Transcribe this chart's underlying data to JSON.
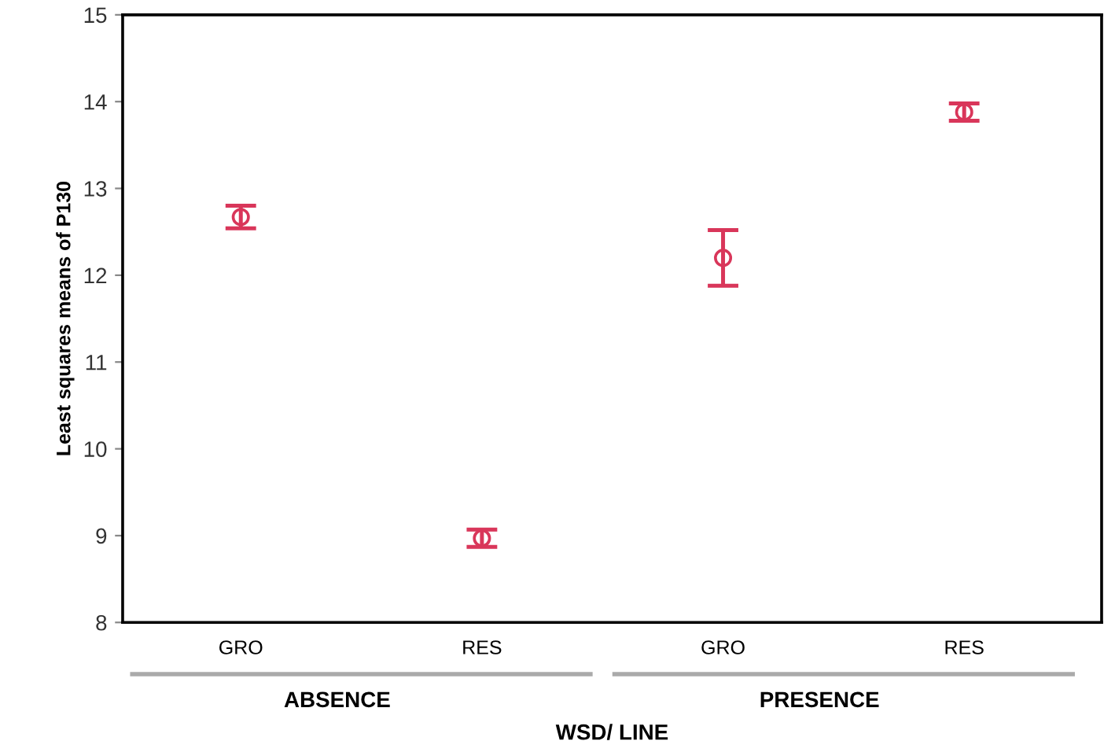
{
  "chart_data": {
    "type": "scatter",
    "ylabel": "Least squares means of P130",
    "xlabel": "WSD/ LINE",
    "categories": [
      "GRO",
      "RES",
      "GRO",
      "RES"
    ],
    "series": [
      {
        "color": "#d9365a",
        "values": [
          12.67,
          8.97,
          12.2,
          13.88
        ],
        "errors": [
          0.13,
          0.1,
          [
            11.88,
            12.52
          ],
          0.1
        ]
      }
    ],
    "annotations": [
      "ABSENCE",
      "PRESENCE"
    ],
    "ylim": [
      8,
      15
    ],
    "yticks": [
      8,
      9,
      10,
      11,
      12,
      13,
      14,
      15
    ],
    "marker": "circle",
    "grid": false,
    "legend": false
  }
}
